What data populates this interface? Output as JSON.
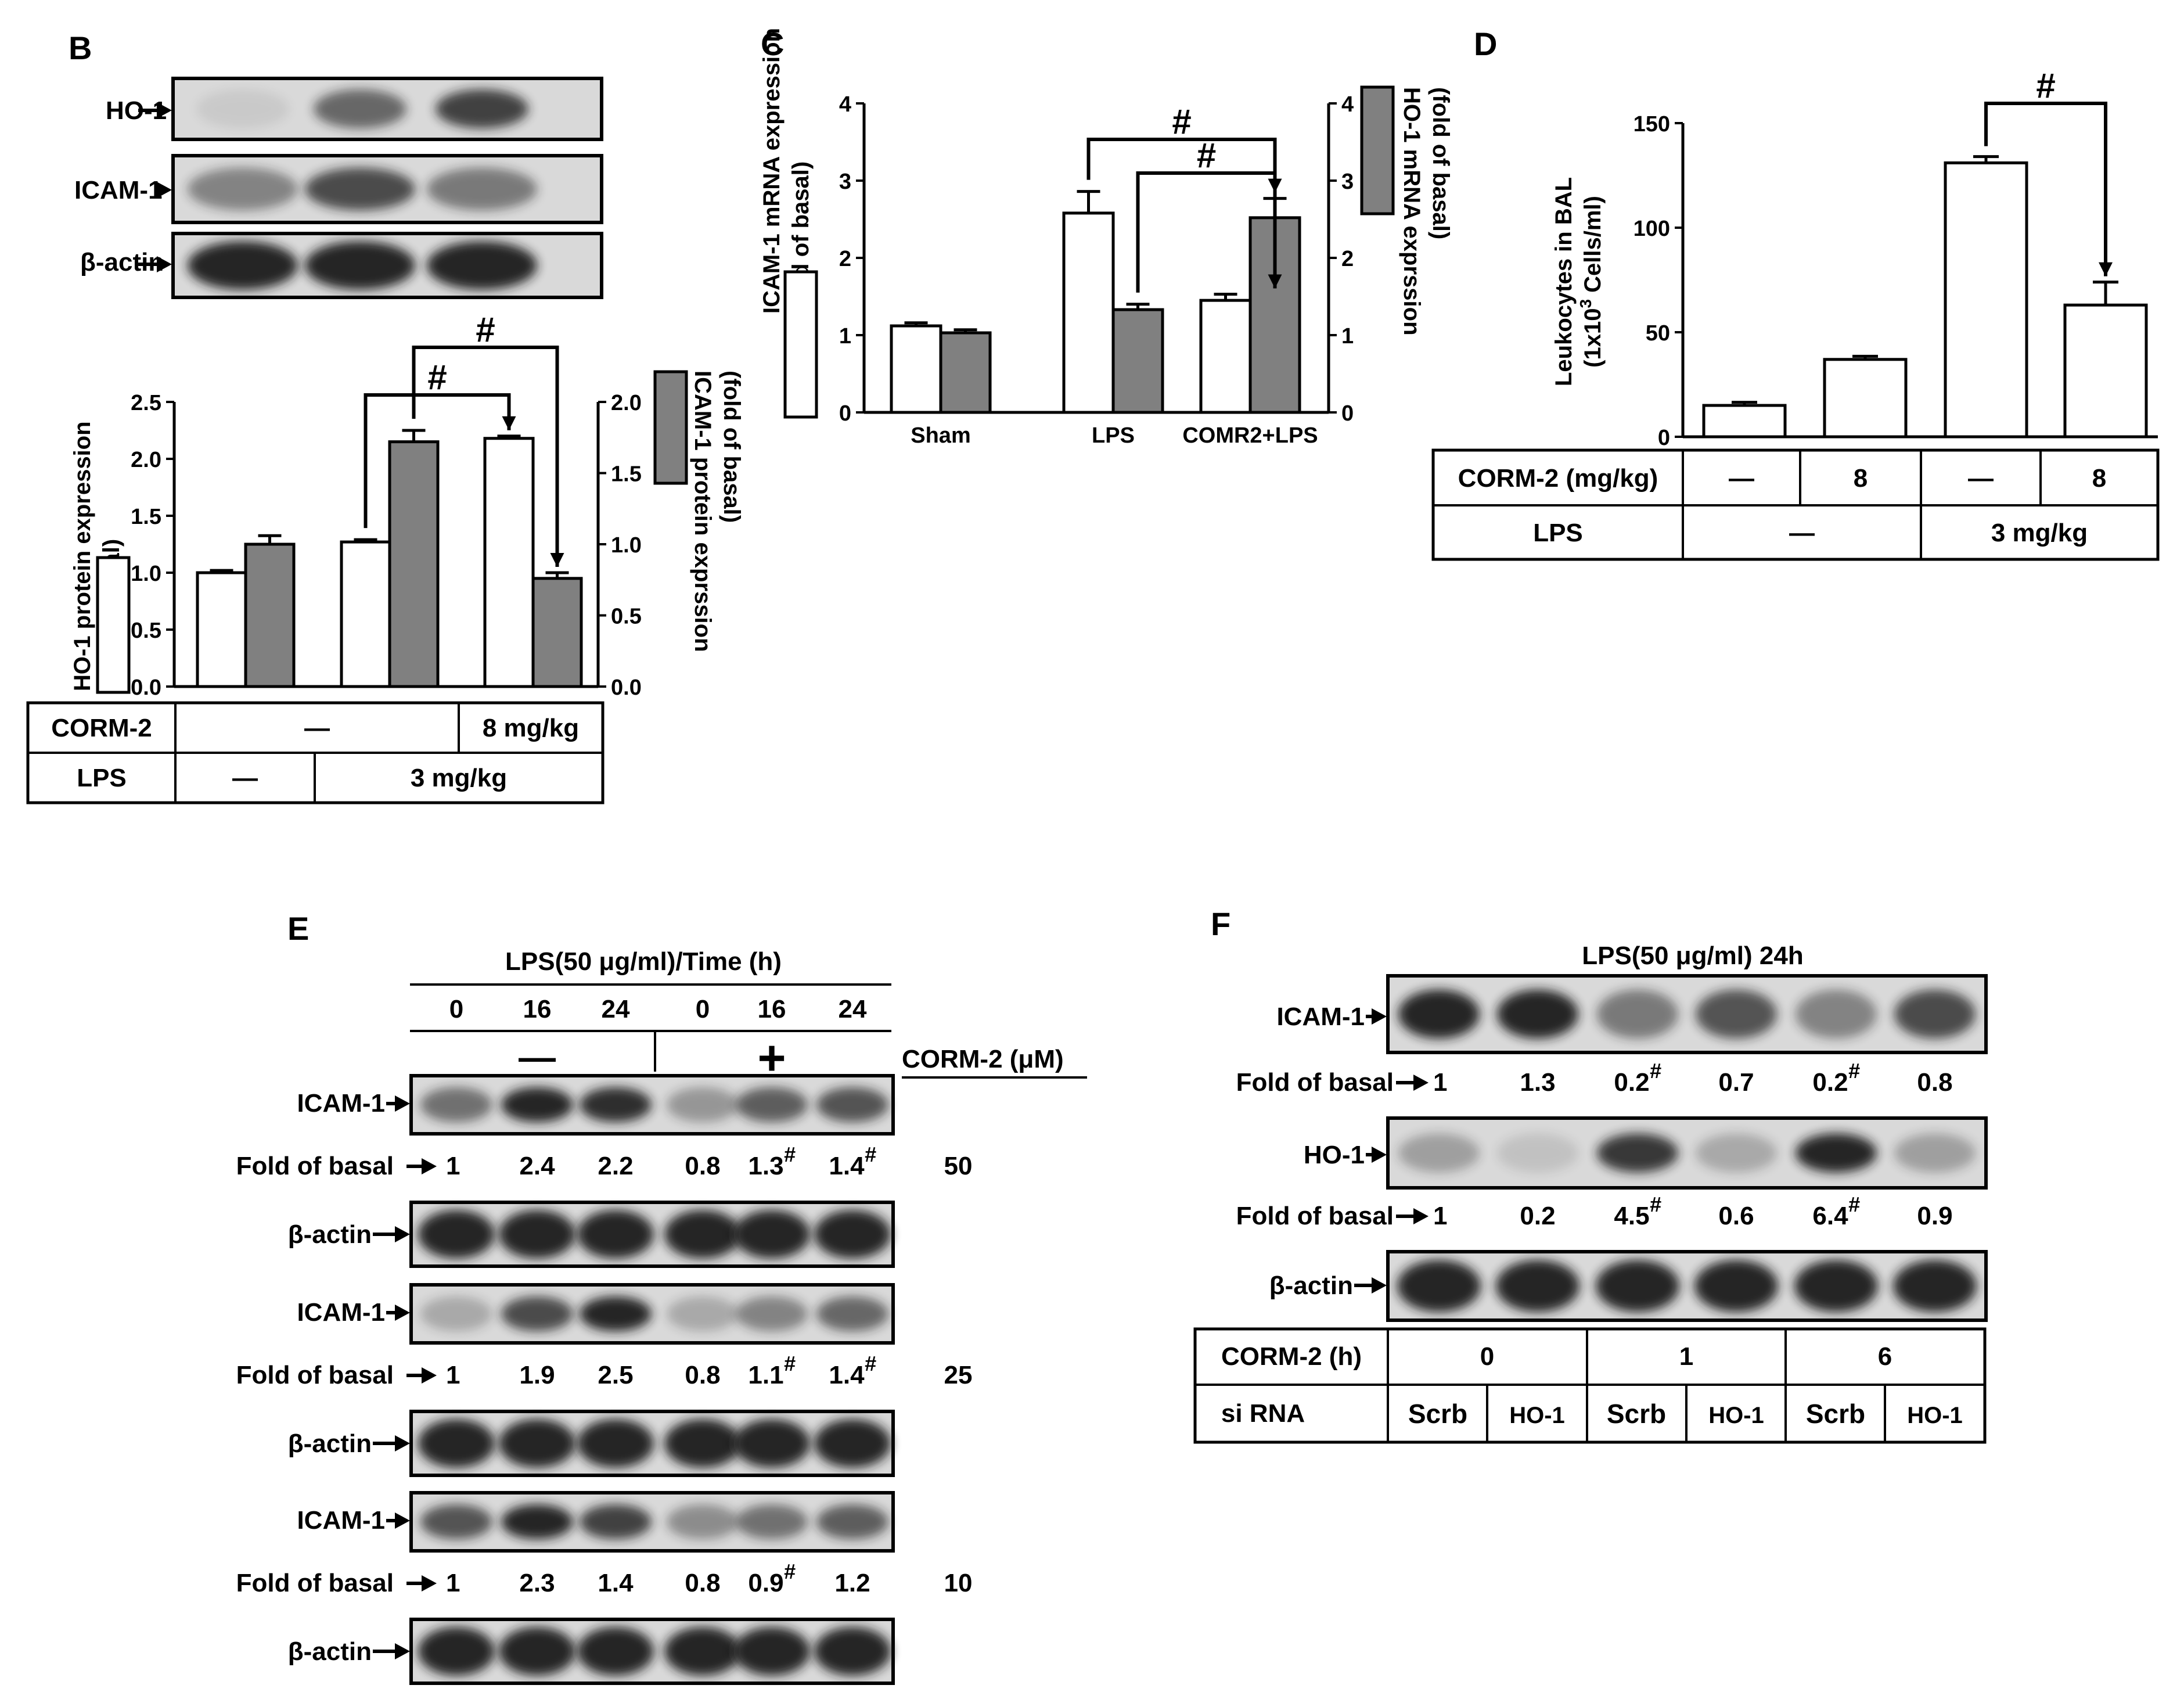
{
  "panels": {
    "B": {
      "letter": "B",
      "blot_labels": [
        "HO-1",
        "ICAM-1",
        "β-actin"
      ],
      "chart_data": {
        "type": "bar",
        "categories": [
          "—/—",
          "—/3 mg/kg",
          "8 mg/kg/3 mg/kg"
        ],
        "series": [
          {
            "name": "HO-1 protein expression (fold of basal)",
            "axis": "left",
            "values": [
              1.0,
              1.27,
              2.18
            ],
            "errors": [
              0.02,
              0.02,
              0.02
            ]
          },
          {
            "name": "ICAM-1 protein expression (fold of basal)",
            "axis": "right",
            "values": [
              1.0,
              1.72,
              0.76
            ],
            "errors": [
              0.06,
              0.08,
              0.04
            ]
          }
        ],
        "ylabel_left": "HO-1 protein expression\n(fold of basal)",
        "ylabel_right": "ICAM-1 protein exprssion\n(fold of basal)",
        "ylim_left": [
          0,
          2.5
        ],
        "yticks_left": [
          "0.0",
          "0.5",
          "1.0",
          "1.5",
          "2.0",
          "2.5"
        ],
        "ylim_right": [
          0,
          2.0
        ],
        "yticks_right": [
          "0.0",
          "0.5",
          "1.0",
          "1.5",
          "2.0"
        ],
        "annotations": [
          "#",
          "#"
        ]
      },
      "table": {
        "row1_label": "CORM-2",
        "row1_cells": [
          "—",
          "8 mg/kg"
        ],
        "row2_label": "LPS",
        "row2_cells": [
          "—",
          "3 mg/kg"
        ]
      }
    },
    "C": {
      "letter": "C",
      "chart_data": {
        "type": "bar",
        "categories": [
          "Sham",
          "LPS",
          "COMR2+LPS"
        ],
        "series": [
          {
            "name": "ICAM-1 mRNA expression (fold of basal)",
            "axis": "left",
            "values": [
              1.12,
              2.58,
              1.45
            ],
            "errors": [
              0.04,
              0.28,
              0.08
            ]
          },
          {
            "name": "HO-1 mRNA exprssion (fold of basal)",
            "axis": "right",
            "values": [
              1.03,
              1.33,
              2.52
            ],
            "errors": [
              0.04,
              0.07,
              0.25
            ]
          }
        ],
        "ylabel_left": "ICAM-1 mRNA expression\n(fold of basal)",
        "ylabel_right": "HO-1 mRNA exprssion\n(fold of basal)",
        "ylim_left": [
          0,
          4
        ],
        "yticks_left": [
          "0",
          "1",
          "2",
          "3",
          "4"
        ],
        "ylim_right": [
          0,
          4
        ],
        "yticks_right": [
          "0",
          "1",
          "2",
          "3",
          "4"
        ],
        "annotations": [
          "#",
          "#"
        ]
      }
    },
    "D": {
      "letter": "D",
      "chart_data": {
        "type": "bar",
        "categories": [
          "—/—",
          "8/—",
          "—/3 mg/kg",
          "8/3 mg/kg"
        ],
        "series": [
          {
            "name": "Leukocytes in BAL",
            "values": [
              15,
              37,
              131,
              63
            ],
            "errors": [
              1.5,
              1.5,
              3,
              11
            ]
          }
        ],
        "ylabel": "Leukocytes in BAL",
        "ylabel2_prefix": "(1x10",
        "ylabel2_sup": "3",
        "ylabel2_suffix": " Cells/ml)",
        "ylim": [
          0,
          150
        ],
        "yticks": [
          "0",
          "50",
          "100",
          "150"
        ],
        "annotations": [
          "#"
        ]
      },
      "table": {
        "row1_label": "CORM-2 (mg/kg)",
        "row1_cells": [
          "—",
          "8",
          "—",
          "8"
        ],
        "row2_label": "LPS",
        "row2_cells": [
          "—",
          "3 mg/kg"
        ]
      }
    },
    "E": {
      "letter": "E",
      "header": "LPS(50 μg/ml)/Time (h)",
      "times": [
        "0",
        "16",
        "24",
        "0",
        "16",
        "24"
      ],
      "minus": "—",
      "plus": "+",
      "corm_label": "CORM-2 (μM)",
      "icam_label": "ICAM-1",
      "actin_label": "β-actin",
      "fold_label": "Fold of basal",
      "blocks": [
        {
          "dose": "50",
          "folds": [
            "1",
            "2.4",
            "2.2",
            "0.8",
            "1.3",
            "1.4"
          ],
          "hash": [
            false,
            false,
            false,
            false,
            true,
            true
          ]
        },
        {
          "dose": "25",
          "folds": [
            "1",
            "1.9",
            "2.5",
            "0.8",
            "1.1",
            "1.4"
          ],
          "hash": [
            false,
            false,
            false,
            false,
            true,
            true
          ]
        },
        {
          "dose": "10",
          "folds": [
            "1",
            "2.3",
            "1.4",
            "0.8",
            "0.9",
            "1.2"
          ],
          "hash": [
            false,
            false,
            false,
            false,
            true,
            false
          ]
        }
      ]
    },
    "F": {
      "letter": "F",
      "header": "LPS(50 μg/ml) 24h",
      "icam_label": "ICAM-1",
      "ho1_label": "HO-1",
      "actin_label": "β-actin",
      "fold_label": "Fold of basal",
      "icam_folds": [
        "1",
        "1.3",
        "0.2",
        "0.7",
        "0.2",
        "0.8"
      ],
      "icam_hash": [
        false,
        false,
        true,
        false,
        true,
        false
      ],
      "ho1_folds": [
        "1",
        "0.2",
        "4.5",
        "0.6",
        "6.4",
        "0.9"
      ],
      "ho1_hash": [
        false,
        false,
        true,
        false,
        true,
        false
      ],
      "table": {
        "row1_label": "CORM-2 (h)",
        "row1_cells": [
          "0",
          "1",
          "6"
        ],
        "row2_label": "si RNA",
        "row2_cells": [
          "Scrb",
          "HO-1",
          "Scrb",
          "HO-1",
          "Scrb",
          "HO-1"
        ]
      }
    }
  },
  "colors": {
    "white_bar": "#ffffff",
    "gray_bar": "#808080",
    "band": "#1a1a1a",
    "blot_bg": "#d9d9d9"
  }
}
